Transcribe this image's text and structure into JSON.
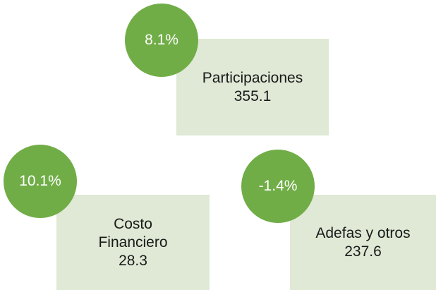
{
  "items": [
    {
      "change": "8.1%",
      "label": "Participaciones",
      "value": "355.1"
    },
    {
      "change": "10.1%",
      "label": "Costo Financiero",
      "value": "28.3"
    },
    {
      "change": "-1.4%",
      "label": "Adefas y otros",
      "value": "237.6"
    }
  ]
}
